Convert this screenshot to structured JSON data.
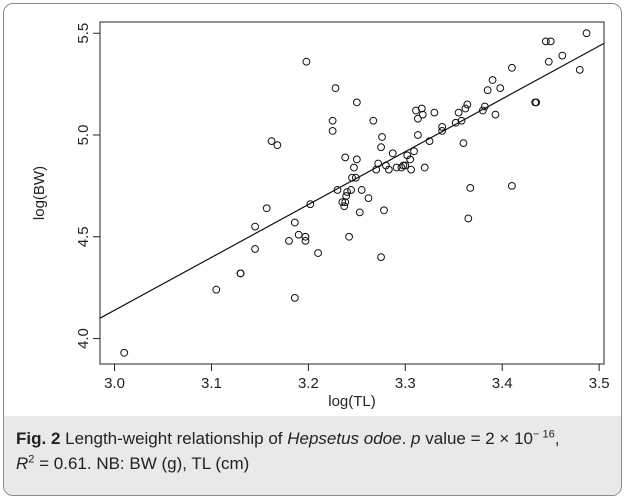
{
  "chart_data": {
    "type": "scatter",
    "xlabel": "log(TL)",
    "ylabel": "log(BW)",
    "xlim": [
      2.985,
      3.505
    ],
    "ylim": [
      3.875,
      5.555
    ],
    "xticks": [
      "3.0",
      "3.1",
      "3.2",
      "3.3",
      "3.4",
      "3.5"
    ],
    "yticks": [
      "4.0",
      "4.5",
      "5.0",
      "5.5"
    ],
    "grid": false,
    "fit_line": {
      "x": [
        2.985,
        3.505
      ],
      "y": [
        4.1,
        5.45
      ]
    },
    "points": [
      [
        3.01,
        3.93
      ],
      [
        3.105,
        4.24
      ],
      [
        3.13,
        4.32
      ],
      [
        3.13,
        4.32
      ],
      [
        3.145,
        4.44
      ],
      [
        3.145,
        4.55
      ],
      [
        3.157,
        4.64
      ],
      [
        3.162,
        4.97
      ],
      [
        3.168,
        4.95
      ],
      [
        3.18,
        4.48
      ],
      [
        3.186,
        4.2
      ],
      [
        3.186,
        4.57
      ],
      [
        3.19,
        4.51
      ],
      [
        3.197,
        4.48
      ],
      [
        3.197,
        4.5
      ],
      [
        3.198,
        5.36
      ],
      [
        3.202,
        4.66
      ],
      [
        3.21,
        4.42
      ],
      [
        3.225,
        5.07
      ],
      [
        3.225,
        5.02
      ],
      [
        3.228,
        5.23
      ],
      [
        3.23,
        4.73
      ],
      [
        3.235,
        4.67
      ],
      [
        3.237,
        4.65
      ],
      [
        3.238,
        4.67
      ],
      [
        3.239,
        4.7
      ],
      [
        3.238,
        4.89
      ],
      [
        3.24,
        4.72
      ],
      [
        3.242,
        4.5
      ],
      [
        3.244,
        4.73
      ],
      [
        3.245,
        4.79
      ],
      [
        3.247,
        4.84
      ],
      [
        3.249,
        4.79
      ],
      [
        3.25,
        4.88
      ],
      [
        3.25,
        5.16
      ],
      [
        3.253,
        4.62
      ],
      [
        3.255,
        4.73
      ],
      [
        3.262,
        4.69
      ],
      [
        3.267,
        5.07
      ],
      [
        3.27,
        4.83
      ],
      [
        3.272,
        4.86
      ],
      [
        3.275,
        4.4
      ],
      [
        3.275,
        4.94
      ],
      [
        3.276,
        4.99
      ],
      [
        3.278,
        4.63
      ],
      [
        3.28,
        4.85
      ],
      [
        3.283,
        4.83
      ],
      [
        3.287,
        4.91
      ],
      [
        3.291,
        4.84
      ],
      [
        3.296,
        4.84
      ],
      [
        3.298,
        4.85
      ],
      [
        3.3,
        4.85
      ],
      [
        3.302,
        4.9
      ],
      [
        3.305,
        4.88
      ],
      [
        3.306,
        4.83
      ],
      [
        3.309,
        4.92
      ],
      [
        3.311,
        5.12
      ],
      [
        3.313,
        5.08
      ],
      [
        3.313,
        5.0
      ],
      [
        3.317,
        5.13
      ],
      [
        3.318,
        5.1
      ],
      [
        3.32,
        4.84
      ],
      [
        3.325,
        4.97
      ],
      [
        3.33,
        5.11
      ],
      [
        3.338,
        5.02
      ],
      [
        3.338,
        5.04
      ],
      [
        3.352,
        5.06
      ],
      [
        3.355,
        5.11
      ],
      [
        3.358,
        5.07
      ],
      [
        3.36,
        4.96
      ],
      [
        3.362,
        5.13
      ],
      [
        3.364,
        5.15
      ],
      [
        3.365,
        4.59
      ],
      [
        3.367,
        4.74
      ],
      [
        3.38,
        5.12
      ],
      [
        3.382,
        5.14
      ],
      [
        3.385,
        5.22
      ],
      [
        3.39,
        5.27
      ],
      [
        3.393,
        5.1
      ],
      [
        3.398,
        5.23
      ],
      [
        3.41,
        4.75
      ],
      [
        3.41,
        5.33
      ],
      [
        3.434,
        5.16
      ],
      [
        3.435,
        5.16
      ],
      [
        3.445,
        5.46
      ],
      [
        3.448,
        5.36
      ],
      [
        3.45,
        5.46
      ],
      [
        3.462,
        5.39
      ],
      [
        3.48,
        5.32
      ],
      [
        3.487,
        5.5
      ]
    ]
  },
  "caption": {
    "label": "Fig. 2",
    "text_1": " Length-weight relationship of ",
    "species": "Hepsetus odoe",
    "text_2": ". ",
    "p_var": "p",
    "p_text": " value = 2 × 10",
    "p_exp": "− 16",
    "comma": ",",
    "r_var": "R",
    "r_exp": "2",
    "r_text": " = 0.61. NB: BW (g), TL (cm)"
  }
}
